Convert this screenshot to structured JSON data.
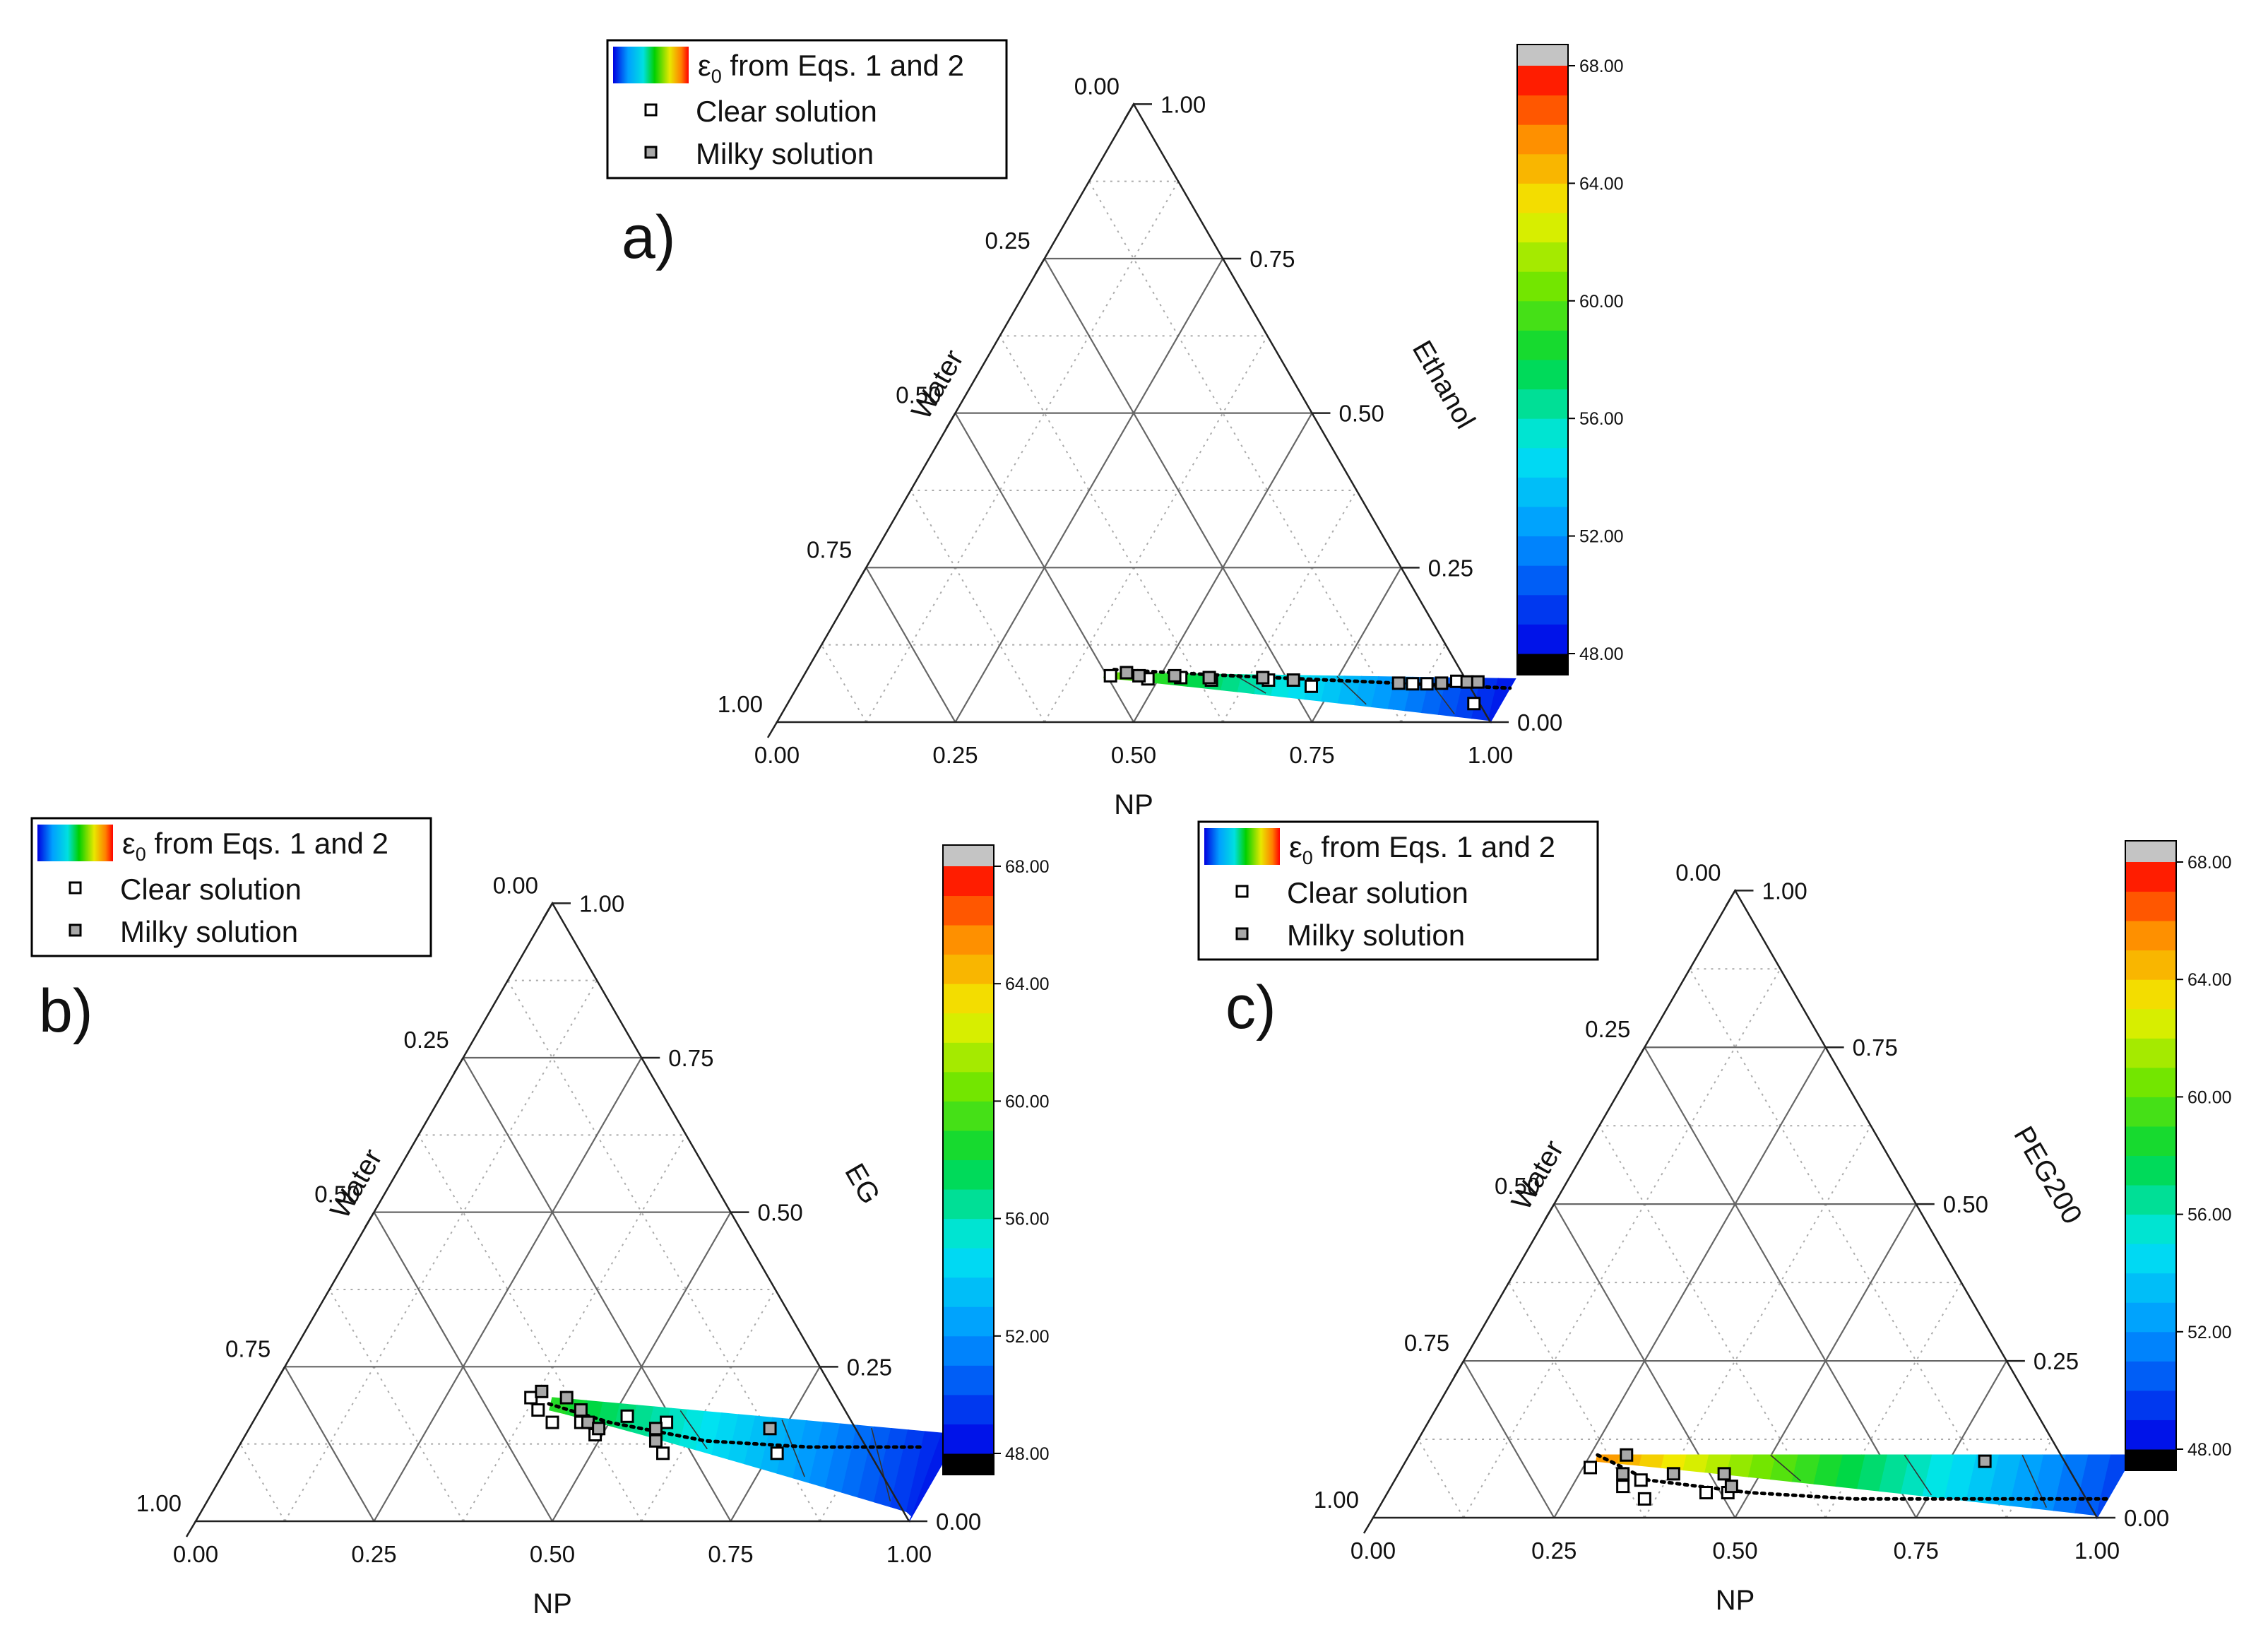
{
  "chart_data": [
    {
      "type": "ternary",
      "panel_label": "a)",
      "axes": {
        "bottom": "NP",
        "left": "Water",
        "right": "Ethanol"
      },
      "ticks": [
        "0.00",
        "0.25",
        "0.50",
        "0.75",
        "1.00"
      ],
      "legend": {
        "gradient_label": "ε",
        "gradient_sub": "0",
        "gradient_rest": " from Eqs. 1 and 2",
        "clear": "Clear solution",
        "milky": "Milky solution"
      },
      "colorbar": {
        "min": 48,
        "max": 68,
        "ticks": [
          "48.00",
          "52.00",
          "56.00",
          "60.00",
          "64.00",
          "68.00"
        ]
      },
      "region": {
        "np_start": 0.42,
        "comp_start": 0.08,
        "comp_end_hi": 0.07,
        "eps_left": 60.5,
        "eps_right": 48.5
      },
      "trend": [
        [
          0.43,
          0.085
        ],
        [
          0.6,
          0.075
        ],
        [
          0.8,
          0.065
        ],
        [
          1.0,
          0.055
        ]
      ],
      "points_clear": [
        [
          0.43,
          0.075
        ],
        [
          0.485,
          0.07
        ],
        [
          0.53,
          0.072
        ],
        [
          0.575,
          0.068
        ],
        [
          0.655,
          0.068
        ],
        [
          0.72,
          0.058
        ],
        [
          0.86,
          0.062
        ],
        [
          0.88,
          0.062
        ],
        [
          0.92,
          0.066
        ],
        [
          0.962,
          0.03
        ]
      ],
      "points_milky": [
        [
          0.45,
          0.08
        ],
        [
          0.47,
          0.075
        ],
        [
          0.52,
          0.075
        ],
        [
          0.57,
          0.072
        ],
        [
          0.645,
          0.072
        ],
        [
          0.69,
          0.068
        ],
        [
          0.84,
          0.063
        ],
        [
          0.9,
          0.063
        ],
        [
          0.935,
          0.065
        ],
        [
          0.95,
          0.065
        ]
      ]
    },
    {
      "type": "ternary",
      "panel_label": "b)",
      "axes": {
        "bottom": "NP",
        "left": "Water",
        "right": "EG"
      },
      "ticks": [
        "0.00",
        "0.25",
        "0.50",
        "0.75",
        "1.00"
      ],
      "legend": {
        "gradient_label": "ε",
        "gradient_sub": "0",
        "gradient_rest": " from Eqs. 1 and 2",
        "clear": "Clear solution",
        "milky": "Milky solution"
      },
      "colorbar": {
        "min": 48,
        "max": 68,
        "ticks": [
          "48.00",
          "52.00",
          "56.00",
          "60.00",
          "64.00",
          "68.00"
        ]
      },
      "region": {
        "np_start": 0.4,
        "comp_start": 0.2,
        "comp_end_hi": 0.14,
        "eps_left": 59.0,
        "eps_right": 48.5
      },
      "trend": [
        [
          0.4,
          0.19
        ],
        [
          0.5,
          0.16
        ],
        [
          0.65,
          0.13
        ],
        [
          0.8,
          0.12
        ],
        [
          0.96,
          0.12
        ]
      ],
      "points_clear": [
        [
          0.37,
          0.2
        ],
        [
          0.39,
          0.18
        ],
        [
          0.42,
          0.16
        ],
        [
          0.46,
          0.16
        ],
        [
          0.49,
          0.14
        ],
        [
          0.52,
          0.17
        ],
        [
          0.58,
          0.16
        ],
        [
          0.6,
          0.11
        ],
        [
          0.76,
          0.11
        ]
      ],
      "points_milky": [
        [
          0.38,
          0.21
        ],
        [
          0.42,
          0.2
        ],
        [
          0.45,
          0.18
        ],
        [
          0.47,
          0.16
        ],
        [
          0.49,
          0.15
        ],
        [
          0.57,
          0.15
        ],
        [
          0.58,
          0.13
        ],
        [
          0.73,
          0.15
        ]
      ]
    },
    {
      "type": "ternary",
      "panel_label": "c)",
      "axes": {
        "bottom": "NP",
        "left": "Water",
        "right": "PEG200"
      },
      "ticks": [
        "0.00",
        "0.25",
        "0.50",
        "0.75",
        "1.00"
      ],
      "legend": {
        "gradient_label": "ε",
        "gradient_sub": "0",
        "gradient_rest": " from Eqs. 1 and 2",
        "clear": "Clear solution",
        "milky": "Milky solution"
      },
      "colorbar": {
        "min": 48,
        "max": 68,
        "ticks": [
          "48.00",
          "52.00",
          "56.00",
          "60.00",
          "64.00",
          "68.00"
        ]
      },
      "region": {
        "np_start": 0.26,
        "comp_start": 0.1,
        "comp_end_hi": 0.1,
        "eps_left": 65.5,
        "eps_right": 49.5
      },
      "trend": [
        [
          0.26,
          0.1
        ],
        [
          0.35,
          0.06
        ],
        [
          0.5,
          0.04
        ],
        [
          0.65,
          0.03
        ],
        [
          1.0,
          0.03
        ]
      ],
      "points_clear": [
        [
          0.26,
          0.08
        ],
        [
          0.32,
          0.05
        ],
        [
          0.34,
          0.06
        ],
        [
          0.36,
          0.03
        ],
        [
          0.44,
          0.04
        ],
        [
          0.47,
          0.04
        ]
      ],
      "points_milky": [
        [
          0.3,
          0.1
        ],
        [
          0.31,
          0.07
        ],
        [
          0.38,
          0.07
        ],
        [
          0.45,
          0.07
        ],
        [
          0.47,
          0.05
        ],
        [
          0.8,
          0.09
        ]
      ]
    }
  ]
}
